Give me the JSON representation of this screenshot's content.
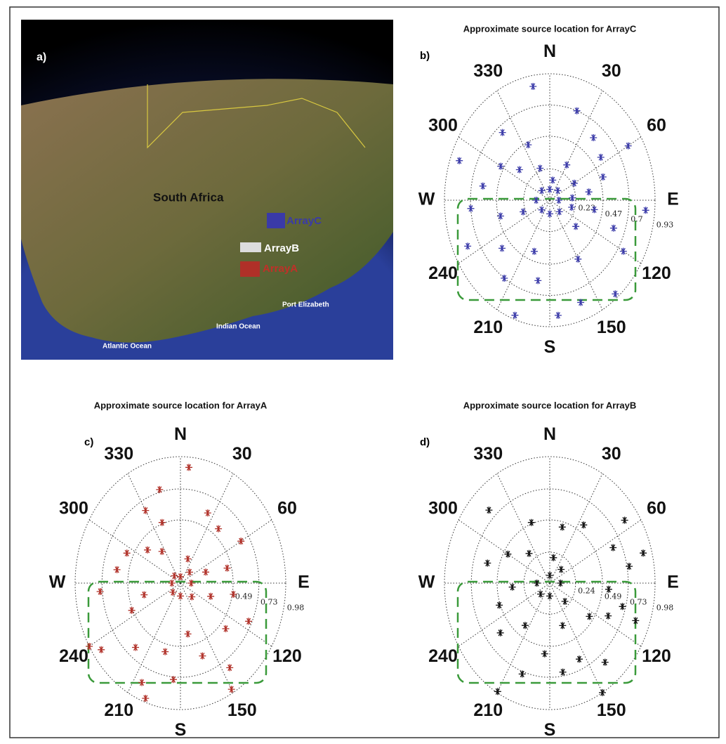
{
  "map": {
    "label": "a)",
    "country": "South Africa",
    "arrays": [
      "ArrayC",
      "ArrayB",
      "ArrayA"
    ],
    "places": [
      "Port Elizabeth",
      "Indian Ocean",
      "Atlantic Ocean"
    ]
  },
  "chart_data": [
    {
      "type": "polar-scatter",
      "title": "Approximate source location for ArrayC",
      "panel_label": "b)",
      "color": "#3a3aa8",
      "rlim": [
        0,
        0.93
      ],
      "rticks": [
        {
          "value": 0.23,
          "label": "0.23"
        },
        {
          "value": 0.47,
          "label": "0.47"
        },
        {
          "value": 0.7,
          "label": "0.7"
        },
        {
          "value": 0.93,
          "label": "0.93"
        }
      ],
      "thetaticks": [
        {
          "value": 0,
          "label": "N"
        },
        30,
        60,
        {
          "value": 90,
          "label": "E"
        },
        120,
        150,
        {
          "value": 180,
          "label": "S"
        },
        210,
        240,
        {
          "value": 270,
          "label": "W"
        },
        300,
        330
      ],
      "theta": [
        350,
        20,
        40,
        55,
        70,
        80,
        100,
        110,
        120,
        95,
        85,
        60,
        30,
        10,
        0,
        45,
        90,
        135,
        180,
        225,
        270,
        315,
        150,
        160,
        175,
        190,
        200,
        215,
        230,
        245,
        255,
        265,
        280,
        290,
        300,
        310,
        320,
        335,
        340,
        130,
        140,
        105,
        200,
        250,
        60
      ],
      "r": [
        0.85,
        0.7,
        0.6,
        0.55,
        0.5,
        0.35,
        0.4,
        0.6,
        0.75,
        0.85,
        0.2,
        0.25,
        0.3,
        0.15,
        0.08,
        0.1,
        0.08,
        0.12,
        0.1,
        0.1,
        0.12,
        0.1,
        0.5,
        0.8,
        0.85,
        0.6,
        0.4,
        0.7,
        0.55,
        0.8,
        0.45,
        0.7,
        0.6,
        0.85,
        0.5,
        0.35,
        0.65,
        0.45,
        0.25,
        0.3,
        0.9,
        0.2,
        0.9,
        0.25,
        0.8
      ]
    },
    {
      "type": "polar-scatter",
      "title": "Approximate source location for ArrayA",
      "panel_label": "c)",
      "color": "#b03028",
      "rlim": [
        0,
        0.98
      ],
      "rticks": [
        {
          "value": 0.49,
          "label": "0.49"
        },
        {
          "value": 0.73,
          "label": "0.73"
        },
        {
          "value": 0.98,
          "label": "0.98"
        }
      ],
      "thetaticks": [
        {
          "value": 0,
          "label": "N"
        },
        30,
        60,
        {
          "value": 90,
          "label": "E"
        },
        120,
        150,
        {
          "value": 180,
          "label": "S"
        },
        210,
        240,
        {
          "value": 270,
          "label": "W"
        },
        300,
        330
      ],
      "theta": [
        5,
        345,
        25,
        40,
        60,
        75,
        100,
        115,
        130,
        145,
        160,
        170,
        185,
        195,
        205,
        220,
        235,
        245,
        255,
        265,
        280,
        295,
        310,
        325,
        340,
        90,
        270,
        0,
        180,
        45,
        135,
        225,
        315,
        150,
        200,
        240,
        110,
        70,
        20,
        330
      ],
      "r": [
        0.9,
        0.75,
        0.6,
        0.55,
        0.65,
        0.45,
        0.5,
        0.7,
        0.55,
        0.8,
        0.6,
        0.4,
        0.75,
        0.55,
        0.85,
        0.65,
        0.9,
        0.5,
        0.35,
        0.75,
        0.6,
        0.55,
        0.4,
        0.3,
        0.5,
        0.1,
        0.08,
        0.05,
        0.1,
        0.12,
        0.15,
        0.1,
        0.08,
        0.95,
        0.95,
        0.98,
        0.3,
        0.25,
        0.2,
        0.65
      ]
    },
    {
      "type": "polar-scatter",
      "title": "Approximate source location for ArrayB",
      "panel_label": "d)",
      "color": "#111111",
      "rlim": [
        0,
        0.98
      ],
      "rticks": [
        {
          "value": 0.24,
          "label": "0.24"
        },
        {
          "value": 0.49,
          "label": "0.49"
        },
        {
          "value": 0.73,
          "label": "0.73"
        },
        {
          "value": 0.98,
          "label": "0.98"
        }
      ],
      "thetaticks": [
        {
          "value": 0,
          "label": "N"
        },
        30,
        60,
        {
          "value": 90,
          "label": "E"
        },
        120,
        150,
        {
          "value": 180,
          "label": "S"
        },
        210,
        240,
        {
          "value": 270,
          "label": "W"
        },
        300,
        330
      ],
      "theta": [
        315,
        340,
        15,
        35,
        55,
        65,
        80,
        95,
        105,
        115,
        125,
        140,
        155,
        170,
        185,
        200,
        215,
        230,
        250,
        265,
        285,
        300,
        320,
        10,
        90,
        270,
        0,
        180,
        45,
        135,
        225,
        150,
        210,
        75,
        110,
        160
      ],
      "r": [
        0.8,
        0.5,
        0.45,
        0.55,
        0.85,
        0.65,
        0.75,
        0.55,
        0.7,
        0.6,
        0.45,
        0.8,
        0.65,
        0.7,
        0.55,
        0.75,
        0.4,
        0.6,
        0.5,
        0.35,
        0.6,
        0.45,
        0.3,
        0.2,
        0.1,
        0.12,
        0.06,
        0.1,
        0.15,
        0.2,
        0.12,
        0.98,
        0.97,
        0.9,
        0.85,
        0.35
      ]
    }
  ]
}
